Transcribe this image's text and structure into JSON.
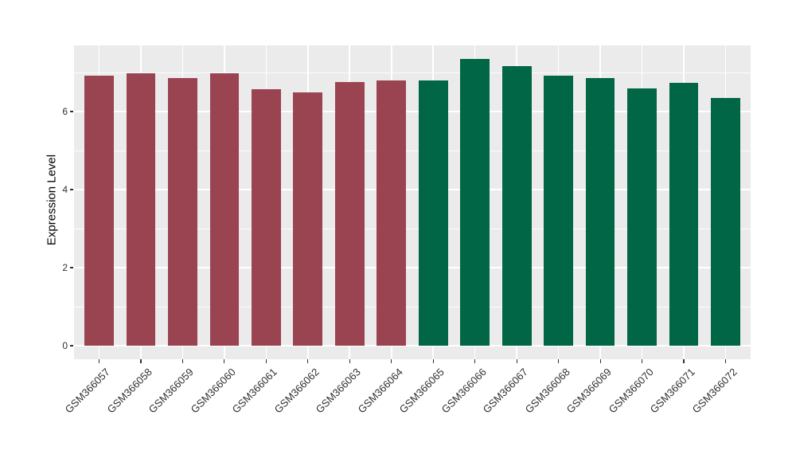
{
  "chart_data": {
    "type": "bar",
    "title": "",
    "ylabel": "Expression Level",
    "xlabel": "",
    "categories": [
      "GSM366057",
      "GSM366058",
      "GSM366059",
      "GSM366060",
      "GSM366061",
      "GSM366062",
      "GSM366063",
      "GSM366064",
      "GSM366065",
      "GSM366066",
      "GSM366067",
      "GSM366068",
      "GSM366069",
      "GSM366070",
      "GSM366071",
      "GSM366072"
    ],
    "values": [
      6.92,
      6.98,
      6.86,
      6.98,
      6.58,
      6.49,
      6.75,
      6.8,
      6.8,
      7.34,
      7.17,
      6.92,
      6.86,
      6.6,
      6.73,
      6.35
    ],
    "bar_colors": [
      "#9A4351",
      "#9A4351",
      "#9A4351",
      "#9A4351",
      "#9A4351",
      "#9A4351",
      "#9A4351",
      "#9A4351",
      "#006646",
      "#006646",
      "#006646",
      "#006646",
      "#006646",
      "#006646",
      "#006646",
      "#006646"
    ],
    "groups": [
      {
        "color": "#9A4351",
        "categories": [
          "GSM366057",
          "GSM366058",
          "GSM366059",
          "GSM366060",
          "GSM366061",
          "GSM366062",
          "GSM366063",
          "GSM366064"
        ]
      },
      {
        "color": "#006646",
        "categories": [
          "GSM366065",
          "GSM366066",
          "GSM366067",
          "GSM366068",
          "GSM366069",
          "GSM366070",
          "GSM366071",
          "GSM366072"
        ]
      }
    ],
    "y_ticks": [
      0,
      2,
      4,
      6
    ],
    "y_minor_ticks": [
      1,
      3,
      5,
      7
    ],
    "ylim": [
      -0.35,
      7.69
    ],
    "bar_width_fraction": 0.7,
    "grid": "major-and-minor, white on gray panel",
    "legend": "none",
    "panel_bg": "#EBEBEB",
    "grid_color": "#FFFFFF",
    "axis_text_color": "#303030",
    "axis_title_color": "#000000"
  }
}
